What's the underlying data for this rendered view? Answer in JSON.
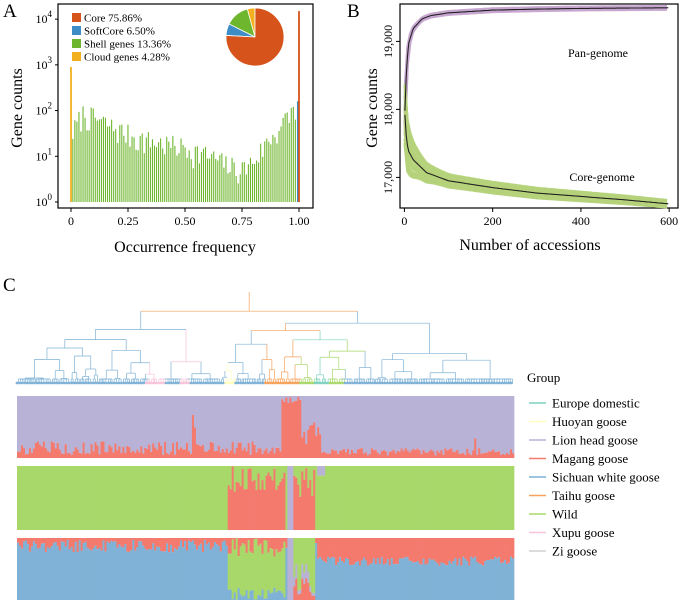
{
  "panel_labels": {
    "a": "A",
    "b": "B",
    "c": "C"
  },
  "colors": {
    "core": "#d6541b",
    "softcore": "#3f8dc6",
    "shell": "#6fb62f",
    "cloud": "#f2b01e",
    "pan_fill": "#c7a6cf",
    "core_fill": "#b5d27a",
    "mean_line": "#222222",
    "europe": "#7fd1c0",
    "huoyan": "#ffffc0",
    "lion": "#b8b2d6",
    "magang": "#f47a6e",
    "sichuan": "#7fb2d6",
    "taihu": "#f5a25a",
    "wild": "#a8d86a",
    "xupu": "#f7c4d9",
    "zi": "#d0d0d0"
  },
  "chart_data": [
    {
      "id": "A",
      "type": "bar",
      "xlabel": "Occurrence frequency",
      "ylabel": "Gene counts",
      "xlim": [
        0,
        1
      ],
      "ylim_log10": [
        0,
        4.2
      ],
      "yscale": "log",
      "xticks": [
        "0",
        "0.25",
        "0.50",
        "0.75",
        "1.00"
      ],
      "xtick_values": [
        0,
        0.25,
        0.5,
        0.75,
        1.0
      ],
      "yticks": [
        {
          "base": "10",
          "exp": "0",
          "value": 1
        },
        {
          "base": "10",
          "exp": "1",
          "value": 10
        },
        {
          "base": "10",
          "exp": "2",
          "value": 100
        },
        {
          "base": "10",
          "exp": "3",
          "value": 1000
        },
        {
          "base": "10",
          "exp": "4",
          "value": 10000
        }
      ],
      "legend": [
        {
          "label": "Core 75.86%",
          "key": "core"
        },
        {
          "label": "SoftCore 6.50%",
          "key": "softcore"
        },
        {
          "label": "Shell genes 13.36%",
          "key": "shell"
        },
        {
          "label": "Cloud genes 4.28%",
          "key": "cloud"
        }
      ],
      "pie": [
        {
          "name": "Core",
          "value": 75.86,
          "key": "core"
        },
        {
          "name": "SoftCore",
          "value": 6.5,
          "key": "softcore"
        },
        {
          "name": "Shell genes",
          "value": 13.36,
          "key": "shell"
        },
        {
          "name": "Cloud genes",
          "value": 4.28,
          "key": "cloud"
        }
      ],
      "special_bars": [
        {
          "x": 0.0,
          "value": 900,
          "key": "cloud"
        },
        {
          "x": 0.995,
          "value": 160,
          "key": "softcore"
        },
        {
          "x": 1.0,
          "value": 15000,
          "key": "core"
        }
      ],
      "shell_profile": [
        {
          "x": 0.01,
          "value": 40
        },
        {
          "x": 0.05,
          "value": 100
        },
        {
          "x": 0.1,
          "value": 80
        },
        {
          "x": 0.2,
          "value": 45
        },
        {
          "x": 0.3,
          "value": 28
        },
        {
          "x": 0.4,
          "value": 22
        },
        {
          "x": 0.5,
          "value": 18
        },
        {
          "x": 0.6,
          "value": 12
        },
        {
          "x": 0.7,
          "value": 7
        },
        {
          "x": 0.75,
          "value": 6
        },
        {
          "x": 0.8,
          "value": 9
        },
        {
          "x": 0.85,
          "value": 20
        },
        {
          "x": 0.9,
          "value": 40
        },
        {
          "x": 0.95,
          "value": 80
        },
        {
          "x": 0.985,
          "value": 150
        }
      ]
    },
    {
      "id": "B",
      "type": "line",
      "xlabel": "Number of accessions",
      "ylabel": "Gene counts",
      "xlim": [
        -10,
        620
      ],
      "ylim": [
        16550,
        19550
      ],
      "xticks": [
        0,
        200,
        400,
        600
      ],
      "yticks": [
        17000,
        18000,
        19000
      ],
      "ytick_labels": [
        "17,000",
        "18,000",
        "19,000"
      ],
      "series": [
        {
          "name": "Pan-genome",
          "x": [
            1,
            5,
            10,
            20,
            40,
            60,
            100,
            200,
            300,
            400,
            500,
            600
          ],
          "values": [
            17980,
            18650,
            18980,
            19190,
            19330,
            19380,
            19420,
            19460,
            19475,
            19485,
            19490,
            19495
          ]
        },
        {
          "name": "Core-genome",
          "x": [
            1,
            5,
            10,
            20,
            50,
            100,
            200,
            300,
            400,
            500,
            600
          ],
          "values": [
            17920,
            17520,
            17380,
            17260,
            17070,
            16950,
            16850,
            16770,
            16720,
            16670,
            16610
          ]
        }
      ],
      "annotations": [
        "Pan-genome",
        "Core-genome"
      ]
    },
    {
      "id": "C",
      "type": "other",
      "description_free": true,
      "legend_title": "Group",
      "groups": [
        {
          "name": "Europe domestic",
          "key": "europe"
        },
        {
          "name": "Huoyan goose",
          "key": "huoyan"
        },
        {
          "name": "Lion head goose",
          "key": "lion"
        },
        {
          "name": "Magang goose",
          "key": "magang"
        },
        {
          "name": "Sichuan white goose",
          "key": "sichuan"
        },
        {
          "name": "Taihu goose",
          "key": "taihu"
        },
        {
          "name": "Wild",
          "key": "wild"
        },
        {
          "name": "Xupu goose",
          "key": "xupu"
        },
        {
          "name": "Zi goose",
          "key": "zi"
        }
      ],
      "admixture_rows": [
        {
          "components": [
            "lion",
            "magang"
          ]
        },
        {
          "components": [
            "wild",
            "magang",
            "lion"
          ]
        },
        {
          "components": [
            "sichuan",
            "magang",
            "wild",
            "lion"
          ]
        }
      ]
    }
  ]
}
